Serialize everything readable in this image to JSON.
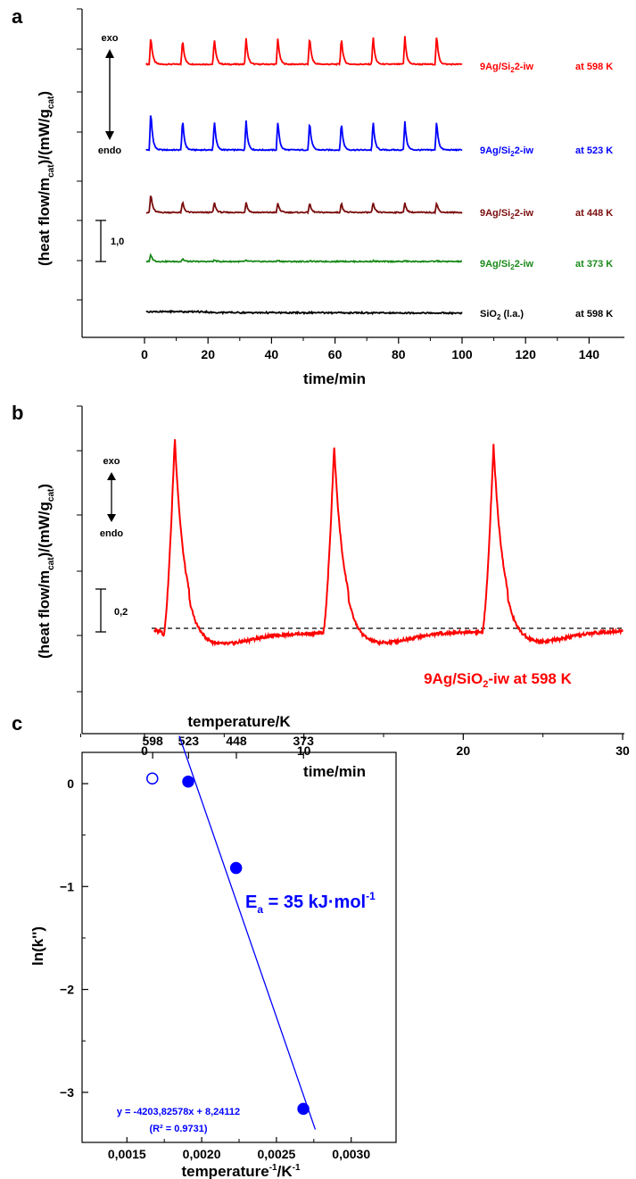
{
  "chart_data": [
    {
      "panel": "a",
      "type": "line",
      "xlabel": "time/min",
      "ylabel": "(heat flow/m_cat)/(mW/g_cat)",
      "xlim": [
        -12,
        150
      ],
      "xticks": [
        0,
        20,
        40,
        60,
        80,
        100,
        120,
        140
      ],
      "scale_bar": "1,0",
      "annotation_exo": "exo",
      "annotation_endo": "endo",
      "pulse_times": [
        2,
        12,
        22,
        32,
        42,
        52,
        62,
        72,
        82,
        92
      ],
      "series": [
        {
          "name": "9Ag/SiO2-iw",
          "temp": "at 598 K",
          "color": "#ff0000",
          "peak_heights": [
            0.78,
            0.72,
            0.72,
            0.72,
            0.74,
            0.78,
            0.75,
            0.76,
            0.76,
            0.8
          ]
        },
        {
          "name": "9Ag/SiO2-iw",
          "temp": "at 523 K",
          "color": "#0000ff",
          "peak_heights": [
            1.08,
            0.86,
            0.82,
            0.8,
            0.8,
            0.8,
            0.78,
            0.78,
            0.78,
            0.8
          ]
        },
        {
          "name": "9Ag/SiO2-iw",
          "temp": "at 448 K",
          "color": "#7a0c0c",
          "peak_heights": [
            0.52,
            0.3,
            0.28,
            0.28,
            0.26,
            0.26,
            0.26,
            0.26,
            0.26,
            0.26
          ]
        },
        {
          "name": "9Ag/SiO2-iw",
          "temp": "at 373 K",
          "color": "#1a8a1a",
          "peak_heights": [
            0.2,
            0.08,
            0.04,
            0.03,
            0.03,
            0.02,
            0.02,
            0.02,
            0.02,
            0.02
          ]
        },
        {
          "name": "SiO2 (l.a.)",
          "temp": "at 598 K",
          "color": "#000000",
          "peak_heights": [
            0,
            0,
            0,
            0,
            0,
            0,
            0,
            0,
            0,
            0
          ]
        }
      ]
    },
    {
      "panel": "b",
      "type": "line",
      "xlabel": "time/min",
      "ylabel": "(heat flow/m_cat)/(mW/g_cat)",
      "xlim": [
        -4,
        30
      ],
      "xticks": [
        0,
        10,
        20,
        30
      ],
      "scale_bar": "0,2",
      "annotation_exo": "exo",
      "annotation_endo": "endo",
      "series_label": "9Ag/SiO2-iw at 598 K",
      "color": "#ff0000",
      "pulse_times": [
        1.9,
        11.9,
        21.9
      ],
      "peak_heights": [
        1.56,
        1.48,
        1.48
      ],
      "baseline": "dashed"
    },
    {
      "panel": "c",
      "type": "scatter",
      "title_top": "temperature/K",
      "top_ticks": [
        "598",
        "523",
        "448",
        "373"
      ],
      "xlabel": "temperature^-1/K^-1",
      "ylabel": "ln(k'')",
      "xlim": [
        0.0012,
        0.0033
      ],
      "ylim": [
        -3.6,
        0.5
      ],
      "xticks": [
        "0,0015",
        "0,0020",
        "0,0025",
        "0,0030"
      ],
      "yticks": [
        0,
        -1,
        -2,
        -3
      ],
      "points": [
        {
          "x": 0.00167,
          "y": 0.05,
          "filled": false
        },
        {
          "x": 0.00191,
          "y": 0.02,
          "filled": true
        },
        {
          "x": 0.00223,
          "y": -0.82,
          "filled": true
        },
        {
          "x": 0.00268,
          "y": -3.16,
          "filled": true
        }
      ],
      "fit": {
        "slope": -4203.82578,
        "intercept": 8.24112,
        "x_range": [
          0.00185,
          0.00276
        ]
      },
      "fit_equation": "y = -4203,82578x + 8,24112",
      "fit_r2": "(R² = 0.9731)",
      "ea_label": "35 kJ·mol",
      "color": "#0000ff"
    }
  ]
}
